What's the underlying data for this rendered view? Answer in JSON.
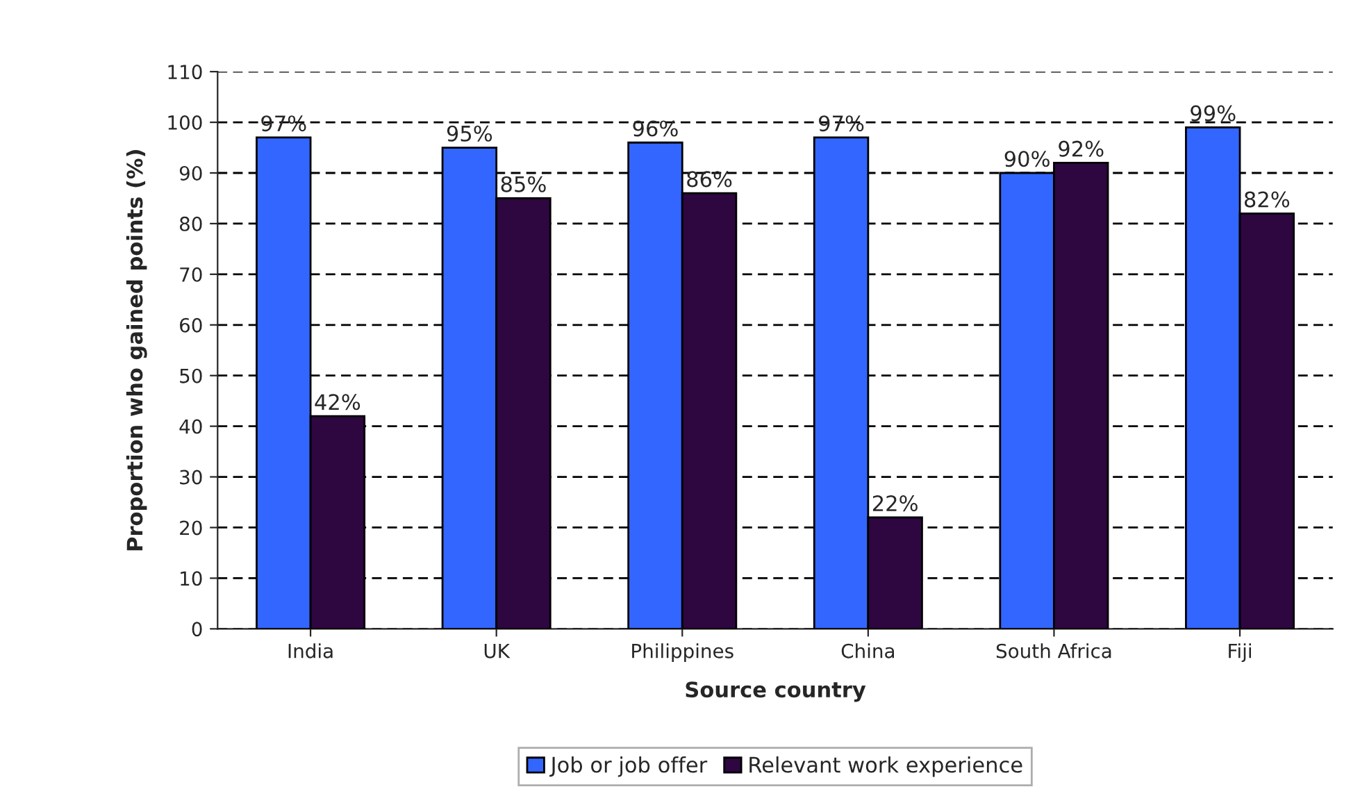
{
  "chart_data": {
    "type": "bar",
    "xlabel": "Source country",
    "ylabel": "Proportion who gained points (%)",
    "categories": [
      "India",
      "UK",
      "Philippines",
      "China",
      "South Africa",
      "Fiji"
    ],
    "series": [
      {
        "name": "Job or job offer",
        "color": "#3366ff",
        "values": [
          97,
          95,
          96,
          97,
          90,
          99
        ],
        "value_labels": [
          "97%",
          "95%",
          "96%",
          "97%",
          "90%",
          "99%"
        ]
      },
      {
        "name": "Relevant work experience",
        "color": "#2e0640",
        "values": [
          42,
          85,
          86,
          22,
          92,
          82
        ],
        "value_labels": [
          "42%",
          "85%",
          "86%",
          "22%",
          "92%",
          "82%"
        ]
      }
    ],
    "ylim": [
      0,
      110
    ],
    "yticks": [
      0,
      10,
      20,
      30,
      40,
      50,
      60,
      70,
      80,
      90,
      100,
      110
    ],
    "grid": "y",
    "legend": "bottom"
  }
}
